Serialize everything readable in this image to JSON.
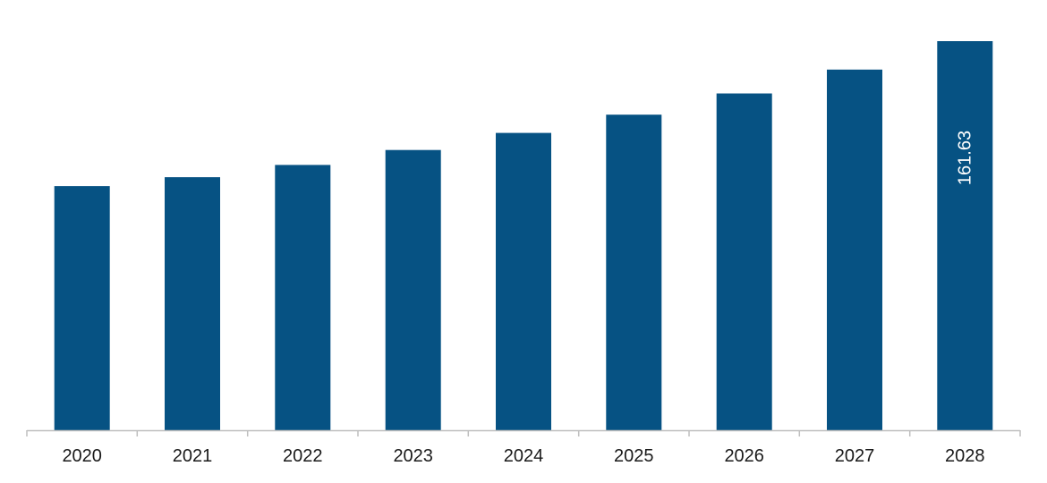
{
  "chart_data": {
    "type": "bar",
    "categories": [
      "2020",
      "2021",
      "2022",
      "2023",
      "2024",
      "2025",
      "2026",
      "2027",
      "2028"
    ],
    "values": [
      101.4,
      105.1,
      110.2,
      116.4,
      123.5,
      131.1,
      139.9,
      149.8,
      161.63
    ],
    "data_labels": [
      "",
      "",
      "",
      "",
      "",
      "",
      "",
      "",
      "161.63"
    ],
    "title": "",
    "xlabel": "",
    "ylabel": "",
    "ylim": [
      0,
      175
    ],
    "grid": false,
    "legend": "none",
    "bar_color": "#065283",
    "axis_color": "#bfbfbf"
  }
}
